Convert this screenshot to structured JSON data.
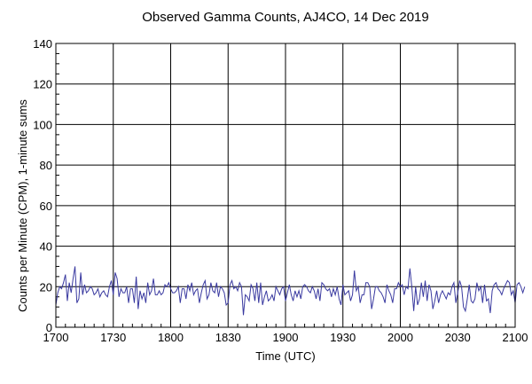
{
  "chart_data": {
    "type": "line",
    "title": "Observed Gamma Counts, AJ4CO, 14 Dec 2019",
    "xlabel": "Time (UTC)",
    "ylabel": "Counts per Minute (CPM), 1-minute sums",
    "x_ticks": [
      "1700",
      "1730",
      "1800",
      "1830",
      "1900",
      "1930",
      "2000",
      "2030",
      "2100"
    ],
    "y_ticks": [
      "0",
      "20",
      "40",
      "60",
      "80",
      "100",
      "120",
      "140"
    ],
    "xlim_minutes": [
      0,
      240
    ],
    "ylim": [
      0,
      140
    ],
    "grid": true,
    "series": [
      {
        "color": "#3a3aa0",
        "x_start": "1700",
        "x_step_minutes": 1,
        "values": [
          11,
          17,
          20,
          19,
          22,
          26,
          13,
          22,
          17,
          24,
          30,
          12,
          14,
          27,
          16,
          21,
          17,
          18,
          20,
          19,
          16,
          17,
          19,
          15,
          17,
          18,
          16,
          15,
          20,
          23,
          16,
          27,
          24,
          15,
          19,
          17,
          17,
          20,
          12,
          19,
          19,
          12,
          25,
          9,
          18,
          14,
          17,
          12,
          22,
          16,
          18,
          24,
          16,
          16,
          18,
          16,
          17,
          21,
          20,
          22,
          19,
          17,
          17,
          18,
          20,
          12,
          19,
          19,
          14,
          21,
          18,
          22,
          16,
          18,
          19,
          12,
          17,
          21,
          23,
          14,
          16,
          22,
          18,
          17,
          22,
          15,
          20,
          19,
          17,
          11,
          12,
          21,
          23,
          19,
          20,
          18,
          22,
          20,
          6,
          16,
          15,
          13,
          21,
          19,
          13,
          22,
          12,
          22,
          11,
          15,
          18,
          13,
          14,
          16,
          13,
          20,
          18,
          16,
          19,
          20,
          13,
          17,
          21,
          16,
          13,
          18,
          15,
          18,
          14,
          20,
          21,
          20,
          18,
          17,
          20,
          18,
          14,
          19,
          13,
          22,
          21,
          19,
          18,
          19,
          15,
          19,
          16,
          20,
          14,
          11,
          21,
          16,
          17,
          18,
          13,
          16,
          28,
          18,
          20,
          12,
          16,
          16,
          22,
          22,
          20,
          9,
          14,
          20,
          20,
          18,
          17,
          15,
          12,
          21,
          18,
          16,
          12,
          19,
          19,
          22,
          20,
          21,
          16,
          20,
          19,
          29,
          20,
          8,
          20,
          11,
          14,
          22,
          15,
          23,
          13,
          21,
          18,
          9,
          13,
          18,
          12,
          16,
          18,
          16,
          14,
          17,
          16,
          20,
          22,
          12,
          17,
          23,
          20,
          10,
          8,
          14,
          21,
          13,
          12,
          14,
          22,
          18,
          20,
          12,
          21,
          13,
          14,
          7,
          18,
          21,
          22,
          19,
          18,
          16,
          19,
          21,
          23,
          22,
          16,
          18,
          12,
          21,
          22,
          20,
          17,
          20
        ]
      }
    ]
  }
}
